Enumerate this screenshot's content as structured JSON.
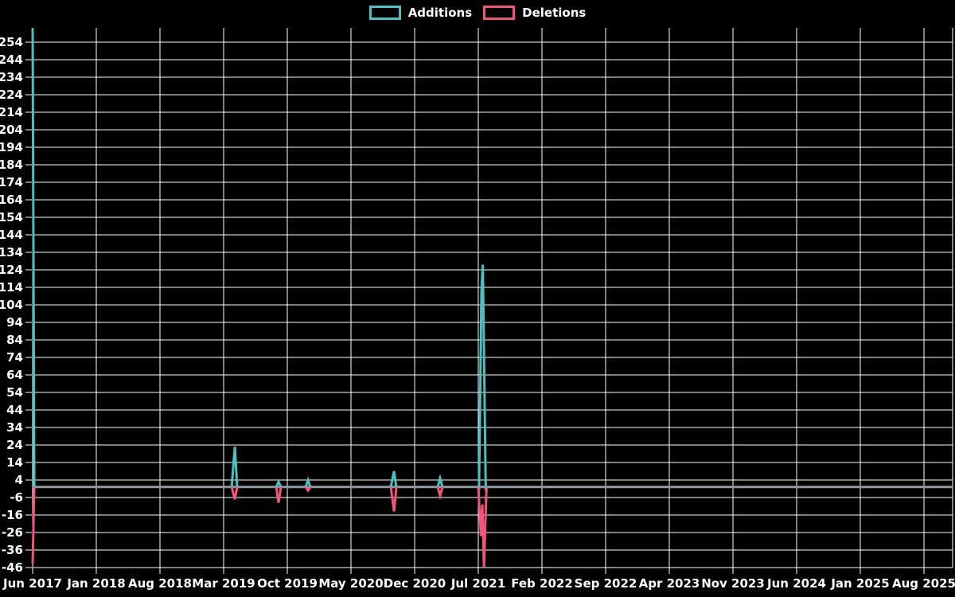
{
  "chart_data": {
    "type": "line",
    "title": "",
    "background": "#000000",
    "legend_position": "top",
    "grid": {
      "color": "#ffffff",
      "zero_line_color": "#8a99a4",
      "grid_on": true
    },
    "y_axis": {
      "min": -46,
      "max": 254,
      "tick_step": 10,
      "tick_labels": [
        "254",
        "244",
        "234",
        "224",
        "214",
        "204",
        "194",
        "184",
        "174",
        "164",
        "154",
        "144",
        "134",
        "124",
        "114",
        "104",
        "94",
        "84",
        "74",
        "64",
        "54",
        "44",
        "34",
        "24",
        "14",
        "4",
        "-6",
        "-16",
        "-26",
        "-36",
        "-46"
      ]
    },
    "x_axis": {
      "tick_labels": [
        "Jun 2017",
        "Jan 2018",
        "Aug 2018",
        "Mar 2019",
        "Oct 2019",
        "May 2020",
        "Dec 2020",
        "Jul 2021",
        "Feb 2022",
        "Sep 2022",
        "Apr 2023",
        "Nov 2023",
        "Jun 2024",
        "Jan 2025",
        "Aug 2025"
      ],
      "months_per_tick": 7
    },
    "series": [
      {
        "name": "Additions",
        "color": "#4bc0c0",
        "segments": [
          [
            [
              0,
              262
            ],
            [
              0.18,
              0
            ]
          ],
          [
            [
              21.88,
              0
            ],
            [
              22.23,
              23
            ],
            [
              22.49,
              0
            ]
          ],
          [
            [
              26.78,
              0
            ],
            [
              27.04,
              3
            ],
            [
              27.3,
              0
            ]
          ],
          [
            [
              30.01,
              0
            ],
            [
              30.28,
              4
            ],
            [
              30.54,
              0
            ]
          ],
          [
            [
              39.38,
              0
            ],
            [
              39.73,
              9
            ],
            [
              39.99,
              0
            ]
          ],
          [
            [
              44.54,
              0
            ],
            [
              44.8,
              5
            ],
            [
              45.06,
              0
            ]
          ],
          [
            [
              49.0,
              0
            ],
            [
              49.08,
              -2
            ],
            [
              49.35,
              112
            ],
            [
              49.5,
              127
            ],
            [
              49.82,
              -2
            ],
            [
              49.95,
              0
            ]
          ]
        ]
      },
      {
        "name": "Deletions",
        "color": "#f2557a",
        "segments": [
          [
            [
              0,
              -44
            ],
            [
              0.18,
              0
            ]
          ],
          [
            [
              21.88,
              0
            ],
            [
              22.23,
              -7
            ],
            [
              22.49,
              0
            ]
          ],
          [
            [
              26.78,
              0
            ],
            [
              27.04,
              -9
            ],
            [
              27.3,
              0
            ]
          ],
          [
            [
              30.01,
              0
            ],
            [
              30.28,
              -2
            ],
            [
              30.54,
              0
            ]
          ],
          [
            [
              39.38,
              0
            ],
            [
              39.73,
              -14
            ],
            [
              39.99,
              0
            ]
          ],
          [
            [
              44.54,
              0
            ],
            [
              44.8,
              -5
            ],
            [
              45.06,
              0
            ]
          ],
          [
            [
              49.0,
              0
            ],
            [
              49.3,
              -28
            ],
            [
              49.45,
              -10
            ],
            [
              49.62,
              -46
            ],
            [
              49.9,
              0
            ]
          ]
        ]
      }
    ],
    "key_points": [
      {
        "period": "Jun 2017",
        "additions": 262,
        "deletions": -44
      },
      {
        "period": "Apr 2019",
        "additions": 23,
        "deletions": -7
      },
      {
        "period": "Sep 2019",
        "additions": 3,
        "deletions": -9
      },
      {
        "period": "Dec 2019",
        "additions": 4,
        "deletions": -2
      },
      {
        "period": "Oct 2020",
        "additions": 9,
        "deletions": -14
      },
      {
        "period": "Mar 2021",
        "additions": 5,
        "deletions": -5
      },
      {
        "period": "Jul 2021",
        "additions": 127,
        "deletions": -46
      }
    ]
  }
}
